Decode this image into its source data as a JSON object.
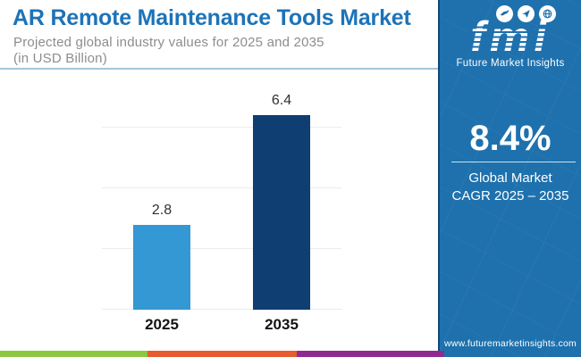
{
  "header": {
    "title": "AR Remote Maintenance Tools Market",
    "subtitle_line1": "Projected global industry values for 2025 and 2035",
    "subtitle_line2": "(in USD Billion)"
  },
  "chart_data": {
    "type": "bar",
    "title": "AR Remote Maintenance Tools Market",
    "categories": [
      "2025",
      "2035"
    ],
    "values": [
      2.8,
      6.4
    ],
    "value_labels": [
      "2.8",
      "6.4"
    ],
    "xlabel": "",
    "ylabel": "USD Billion",
    "ylim": [
      0,
      8
    ],
    "gridlines": [
      0,
      2,
      4,
      6
    ],
    "grid": true,
    "legend": false,
    "bar_colors": [
      "#3498d4",
      "#0e3e72"
    ]
  },
  "sidebar": {
    "bg_color": "#1e71ad",
    "logo": {
      "text": "fmi",
      "tagline": "Future Market Insights"
    },
    "cagr_value": "8.4%",
    "cagr_label_line1": "Global Market",
    "cagr_label_line2": "CAGR 2025 – 2035",
    "website": "www.futuremarketinsights.com"
  },
  "footer_strip": {
    "colors": [
      "#8dc63f",
      "#e65c2e",
      "#8f2b8f"
    ]
  }
}
